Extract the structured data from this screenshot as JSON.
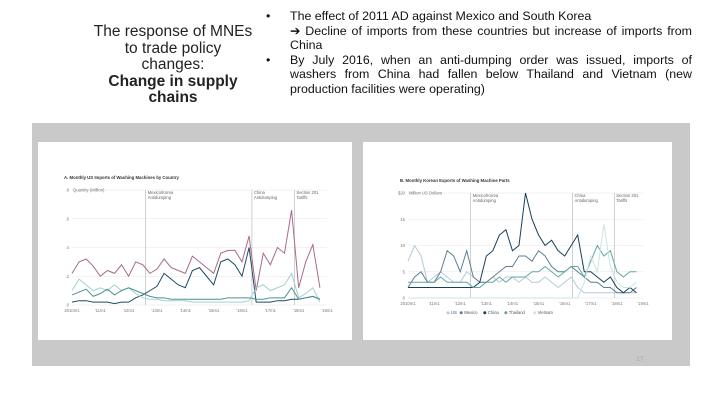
{
  "slide": {
    "title_lines": [
      "The response of MNEs",
      "to trade policy",
      "changes:"
    ],
    "title_bold_lines": [
      "Change in supply",
      "chains"
    ],
    "bullets": [
      {
        "head": "The effect of 2011 AD against Mexico and South Korea",
        "sub": "➔ Decline of imports from these countries but increase of imports from China"
      },
      {
        "head": "By July 2016, when an anti-dumping order was issued, imports of washers from China had fallen below Thailand and Vietnam (new production facilities were operating)",
        "sub": ""
      }
    ],
    "bullet_glyph": "•",
    "page_number": "17"
  },
  "chart_data": [
    {
      "type": "line",
      "title": "A. Monthly US Imports of Washing Machines by Country",
      "ylabel": "Quantity (Million)",
      "ylim": [
        0,
        0.8
      ],
      "yticks": [
        "0",
        ".2",
        ".4",
        ".6",
        ".8"
      ],
      "xlim": [
        2010,
        2019
      ],
      "xticks": [
        "2010m1",
        "'11m1",
        "'12m1",
        "'13m1",
        "'14m1",
        "'15m1",
        "'16m1",
        "'17m1",
        "'18m1",
        "'19m1"
      ],
      "x_start": 2010,
      "x_step": 0.25,
      "events": [
        {
          "x": 2012.6,
          "label": [
            "Mexico/Korea",
            "Antidumping"
          ]
        },
        {
          "x": 2016.35,
          "label": [
            "China",
            "Antidumping"
          ]
        },
        {
          "x": 2017.85,
          "label": [
            "Section 201",
            "Tariffs"
          ]
        }
      ],
      "grid": true,
      "series": [
        {
          "color": "#a86a8c",
          "values": [
            0.22,
            0.3,
            0.32,
            0.27,
            0.2,
            0.24,
            0.22,
            0.28,
            0.2,
            0.3,
            0.28,
            0.22,
            0.25,
            0.32,
            0.26,
            0.24,
            0.22,
            0.34,
            0.3,
            0.26,
            0.22,
            0.36,
            0.38,
            0.38,
            0.3,
            0.48,
            0.1,
            0.36,
            0.28,
            0.4,
            0.36,
            0.66,
            0.12,
            0.3,
            0.42,
            0.12
          ]
        },
        {
          "color": "#1f4a63",
          "values": [
            0.02,
            0.03,
            0.03,
            0.02,
            0.02,
            0.02,
            0.01,
            0.02,
            0.02,
            0.05,
            0.07,
            0.1,
            0.13,
            0.22,
            0.18,
            0.14,
            0.12,
            0.24,
            0.26,
            0.2,
            0.14,
            0.3,
            0.32,
            0.28,
            0.2,
            0.4,
            0.02,
            0.02,
            0.02,
            0.03,
            0.03,
            0.04,
            0.04,
            0.05,
            0.06,
            0.04
          ]
        },
        {
          "color": "#9fd3cf",
          "values": [
            0.1,
            0.18,
            0.14,
            0.1,
            0.12,
            0.1,
            0.14,
            0.1,
            0.12,
            0.08,
            0.05,
            0.04,
            0.04,
            0.03,
            0.03,
            0.03,
            0.03,
            0.02,
            0.02,
            0.02,
            0.02,
            0.02,
            0.02,
            0.02,
            0.02,
            0.03,
            0.12,
            0.14,
            0.1,
            0.12,
            0.14,
            0.22,
            0.05,
            0.08,
            0.12,
            0.02
          ]
        },
        {
          "color": "#4f8f95",
          "values": [
            0.07,
            0.09,
            0.11,
            0.06,
            0.08,
            0.11,
            0.07,
            0.1,
            0.12,
            0.1,
            0.08,
            0.06,
            0.05,
            0.05,
            0.04,
            0.04,
            0.04,
            0.04,
            0.04,
            0.04,
            0.04,
            0.04,
            0.05,
            0.05,
            0.05,
            0.05,
            0.04,
            0.04,
            0.05,
            0.05,
            0.05,
            0.12,
            0.04,
            0.05,
            0.06,
            0.04
          ]
        }
      ]
    },
    {
      "type": "line",
      "title": "B. Monthly Korean Exports of Washing Machine Parts",
      "ylabel": "Million US Dollars",
      "ylim": [
        0,
        20
      ],
      "yticks": [
        "0",
        "5",
        "10",
        "15",
        "$20"
      ],
      "xlim": [
        2010,
        2019
      ],
      "xticks": [
        "2010m1",
        "'11m1",
        "'12m1",
        "'13m1",
        "'14m1",
        "'15m1",
        "'16m1",
        "'17m1",
        "'18m1",
        "'19m1"
      ],
      "x_start": 2010,
      "x_step": 0.25,
      "events": [
        {
          "x": 2012.4,
          "label": [
            "Mexico/Korea",
            "Antidumping"
          ]
        },
        {
          "x": 2016.3,
          "label": [
            "China",
            "Antidumping"
          ]
        },
        {
          "x": 2017.9,
          "label": [
            "Section 201",
            "Tariffs"
          ]
        }
      ],
      "grid": true,
      "legend": "bottom",
      "series": [
        {
          "name": "US",
          "color": "#b7c9d6",
          "values": [
            7,
            10,
            8,
            3,
            4,
            5,
            4,
            3,
            3,
            5,
            4,
            3,
            3,
            4,
            3,
            4,
            4,
            3,
            4,
            3,
            3,
            4,
            3,
            2,
            3,
            4,
            2,
            1,
            1,
            1,
            1,
            1,
            1,
            1,
            1,
            1
          ]
        },
        {
          "name": "Mexico",
          "color": "#5d7f93",
          "values": [
            2,
            4,
            5,
            3,
            3,
            5,
            9,
            8,
            5,
            9,
            4,
            3,
            3,
            4,
            5,
            6,
            6,
            8,
            8,
            7,
            9,
            8,
            6,
            5,
            5,
            6,
            5,
            4,
            3,
            3,
            2,
            2,
            1,
            1,
            1,
            2
          ]
        },
        {
          "name": "China",
          "color": "#173f5a",
          "values": [
            2,
            2,
            2,
            2,
            2,
            2,
            2,
            2,
            2,
            2,
            2,
            3,
            8,
            9,
            12,
            13,
            9,
            10,
            20,
            15,
            12,
            10,
            11,
            9,
            8,
            10,
            12,
            5,
            5,
            4,
            3,
            4,
            2,
            1,
            2,
            1
          ]
        },
        {
          "name": "Thailand",
          "color": "#5fa7a3",
          "values": [
            3,
            3,
            3,
            3,
            3,
            4,
            3,
            3,
            3,
            3,
            2,
            2,
            3,
            3,
            4,
            3,
            4,
            4,
            4,
            5,
            5,
            6,
            5,
            4,
            5,
            6,
            6,
            4,
            7,
            10,
            8,
            9,
            5,
            4,
            5,
            5
          ]
        },
        {
          "name": "Vietnam",
          "color": "#c8e6e3",
          "values": [
            0,
            0,
            0,
            0,
            0,
            0,
            0,
            0,
            0,
            0,
            0,
            0,
            0,
            0,
            0,
            0,
            0,
            0,
            0,
            0,
            0,
            0,
            0,
            0,
            0,
            0,
            0,
            3,
            8,
            5,
            14,
            6,
            3,
            2,
            2,
            3
          ]
        }
      ]
    }
  ]
}
